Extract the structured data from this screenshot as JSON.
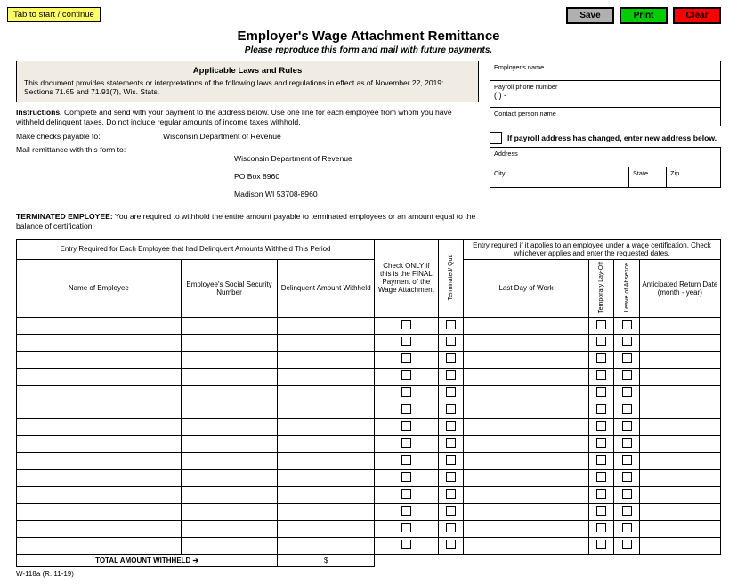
{
  "tab_hint": "Tab to start / continue",
  "buttons": {
    "save": "Save",
    "print": "Print",
    "clear": "Clear"
  },
  "title": "Employer's Wage Attachment Remittance",
  "subtitle": "Please reproduce this form and mail with future payments.",
  "laws": {
    "heading": "Applicable Laws and Rules",
    "body": "This document provides statements or interpretations of the following laws and regulations in effect as of November 22, 2019: Sections 71.65 and 71.91(7), Wis. Stats."
  },
  "instructions": {
    "label": "Instructions.",
    "text": " Complete and send with your payment to the address below.  Use one line for each employee from whom you have withheld delinquent taxes.  Do not include regular amounts of income taxes withhold."
  },
  "payable": {
    "label": "Make checks payable to:",
    "value": "Wisconsin Department of Revenue"
  },
  "mail": {
    "label": "Mail remittance with this form to:",
    "line1": "Wisconsin Department of Revenue",
    "line2": "PO Box 8960",
    "line3": "Madison WI  53708-8960"
  },
  "terminated": {
    "label": "TERMINATED EMPLOYEE:",
    "text": "  You are required to withhold the entire amount payable to terminated employees or an amount equal to the balance of certification."
  },
  "right": {
    "employer_name": "Employer's name",
    "payroll_phone": "Payroll phone number",
    "phone_template": "(               )               -",
    "contact": "Contact person name",
    "changed": "If payroll address has changed, enter new address below.",
    "address": "Address",
    "city": "City",
    "state": "State",
    "zip": "Zip"
  },
  "table": {
    "h_entry_required": "Entry Required for Each Employee that had Delinquent Amounts Withheld This Period",
    "h_name": "Name of Employee",
    "h_ssn": "Employee's Social Security Number",
    "h_amount": "Delinquent Amount Withheld",
    "h_final": "Check ONLY if this is the FINAL Payment of the Wage Attachment",
    "h_termquit": "Terminated/\nQuit",
    "h_cert": "Entry required if it applies to an employee under a wage certification. Check whichever applies and enter the requested dates.",
    "h_lastday": "Last Day of Work",
    "h_layoff": "Temporary\nLay-Off",
    "h_leave": "Leave of\nAbsence",
    "h_return": "Anticipated Return Date (month - year)",
    "total_label": "TOTAL AMOUNT WITHHELD  ➔",
    "dollar": "$",
    "row_count": 14
  },
  "footer": "W-118a (R. 11-19)",
  "colors": {
    "hint_bg": "#ffff66",
    "save_bg": "#b0b0b0",
    "print_bg": "#00cc00",
    "clear_bg": "#ff0000",
    "laws_bg": "#f0ece4"
  }
}
